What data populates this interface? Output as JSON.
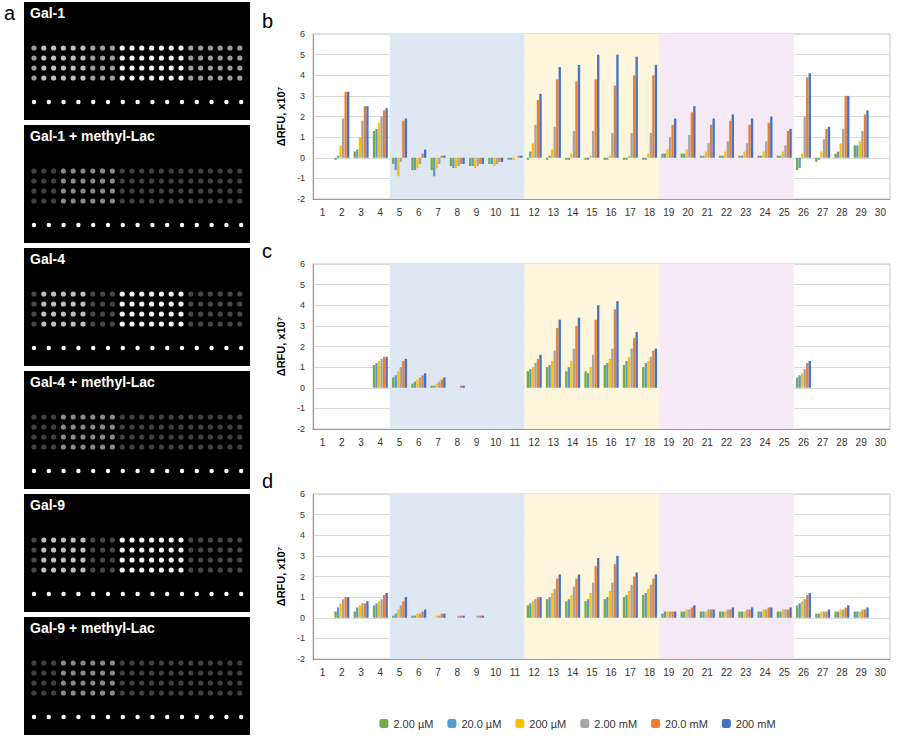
{
  "panel_a": {
    "panel": "a",
    "images": [
      "Gal-1",
      "Gal-1 + methyl-Lac",
      "Gal-4",
      "Gal-4 + methyl-Lac",
      "Gal-9",
      "Gal-9 + methyl-Lac"
    ]
  },
  "chart_data": [
    {
      "type": "bar",
      "panel": "b",
      "y_label": "ΔRFU, x10⁷",
      "categories": [
        "1",
        "2",
        "3",
        "4",
        "5",
        "6",
        "7",
        "8",
        "9",
        "10",
        "11",
        "12",
        "13",
        "14",
        "15",
        "16",
        "17",
        "18",
        "19",
        "20",
        "21",
        "22",
        "23",
        "24",
        "25",
        "26",
        "27",
        "28",
        "29",
        "30"
      ],
      "series": [
        {
          "name": "2.00 µM",
          "color": "#70ad47",
          "values": [
            0,
            -0.1,
            0.3,
            1.3,
            -0.3,
            -0.6,
            -0.6,
            -0.4,
            -0.4,
            -0.3,
            -0.1,
            -0.1,
            -0.1,
            -0.1,
            -0.1,
            -0.1,
            -0.1,
            -0.1,
            0.2,
            0.2,
            0.1,
            0.1,
            0.1,
            0.1,
            0.1,
            -0.6,
            -0.2,
            0.2,
            0.6,
            0
          ]
        },
        {
          "name": "20.0 µM",
          "color": "#5b9bd5",
          "values": [
            0,
            0.1,
            0.4,
            1.4,
            -0.6,
            -0.6,
            -0.9,
            -0.5,
            -0.4,
            -0.3,
            -0.1,
            0.3,
            0.1,
            -0.1,
            -0.1,
            -0.1,
            -0.1,
            -0.1,
            0.2,
            0.2,
            0.1,
            0.1,
            0.1,
            0.1,
            0.1,
            -0.5,
            -0.1,
            0.3,
            0.6,
            0
          ]
        },
        {
          "name": "200 µM",
          "color": "#ffc000",
          "values": [
            0,
            0.6,
            1.0,
            1.7,
            -0.9,
            -0.5,
            -0.5,
            -0.5,
            -0.5,
            -0.4,
            -0.1,
            0.7,
            0.4,
            0.2,
            0.1,
            0.1,
            0.1,
            0.2,
            0.4,
            0.4,
            0.3,
            0.3,
            0.3,
            0.3,
            0.3,
            0.2,
            0.3,
            0.7,
            0.8,
            0
          ]
        },
        {
          "name": "2.00 mM",
          "color": "#a5a5a5",
          "values": [
            0,
            1.9,
            1.8,
            2.0,
            -0.2,
            -0.3,
            -0.3,
            -0.4,
            -0.4,
            -0.3,
            0,
            1.6,
            1.5,
            1.3,
            1.3,
            1.2,
            1.2,
            1.2,
            1.0,
            1.1,
            0.7,
            0.8,
            0.7,
            0.8,
            0.6,
            2.0,
            0.9,
            1.4,
            1.3,
            0
          ]
        },
        {
          "name": "20.0 mM",
          "color": "#ed7d31",
          "values": [
            0,
            3.2,
            2.5,
            2.3,
            1.8,
            0.2,
            0.1,
            -0.3,
            -0.3,
            -0.2,
            0.1,
            2.8,
            3.8,
            3.7,
            3.8,
            3.5,
            4.0,
            4.0,
            1.6,
            2.2,
            1.6,
            1.8,
            1.6,
            1.7,
            1.3,
            3.9,
            1.4,
            3.0,
            2.1,
            0
          ]
        },
        {
          "name": "200 mM",
          "color": "#4472c4",
          "values": [
            0,
            3.2,
            2.5,
            2.4,
            1.9,
            0.4,
            0.1,
            -0.3,
            -0.3,
            -0.2,
            0.1,
            3.1,
            4.4,
            4.5,
            5.0,
            5.0,
            4.9,
            4.5,
            1.9,
            2.5,
            1.9,
            2.1,
            1.9,
            2.0,
            1.4,
            4.1,
            1.5,
            3.0,
            2.3,
            0
          ]
        }
      ],
      "regions": [
        {
          "start": "5",
          "end": "11",
          "color": "#dfe7f3"
        },
        {
          "start": "12",
          "end": "18",
          "color": "#fdf6dc"
        },
        {
          "start": "19",
          "end": "25",
          "color": "#f6eaf6"
        }
      ],
      "ylim": [
        -2,
        6
      ],
      "yticks": [
        -2,
        -1,
        0,
        1,
        2,
        3,
        4,
        5,
        6
      ],
      "grid": true
    },
    {
      "type": "bar",
      "panel": "c",
      "y_label": "ΔRFU, x10⁷",
      "categories": [
        "1",
        "2",
        "3",
        "4",
        "5",
        "6",
        "7",
        "8",
        "9",
        "10",
        "11",
        "12",
        "13",
        "14",
        "15",
        "16",
        "17",
        "18",
        "19",
        "20",
        "21",
        "22",
        "23",
        "24",
        "25",
        "26",
        "27",
        "28",
        "29",
        "30"
      ],
      "series": [
        {
          "name": "2.00 µM",
          "color": "#70ad47",
          "values": [
            0,
            0,
            0,
            1.1,
            0.5,
            0.2,
            0.1,
            0,
            0,
            0,
            0,
            0.8,
            1.0,
            0.8,
            0.8,
            1.1,
            1.1,
            1.0,
            0,
            0,
            0,
            0,
            0,
            0,
            0,
            0.5,
            0,
            0,
            0,
            0
          ]
        },
        {
          "name": "20.0 µM",
          "color": "#5b9bd5",
          "values": [
            0,
            0,
            0,
            1.2,
            0.6,
            0.3,
            0.1,
            0,
            0,
            0,
            0,
            0.9,
            1.1,
            1.0,
            0.7,
            1.2,
            1.3,
            1.2,
            0,
            0,
            0,
            0,
            0,
            0,
            0,
            0.6,
            0,
            0,
            0,
            0
          ]
        },
        {
          "name": "200 µM",
          "color": "#ffc000",
          "values": [
            0,
            0,
            0,
            1.3,
            0.8,
            0.4,
            0.2,
            0,
            0,
            0,
            0,
            1.0,
            1.3,
            1.3,
            1.0,
            1.4,
            1.5,
            1.3,
            0,
            0,
            0,
            0,
            0,
            0,
            0,
            0.7,
            0,
            0,
            0,
            0
          ]
        },
        {
          "name": "2.00 mM",
          "color": "#a5a5a5",
          "values": [
            0,
            0,
            0,
            1.4,
            1.0,
            0.5,
            0.3,
            0,
            0,
            0,
            0,
            1.2,
            1.8,
            1.9,
            1.6,
            1.9,
            1.9,
            1.5,
            0,
            0,
            0,
            0,
            0,
            0,
            0,
            0.9,
            0,
            0,
            0,
            0
          ]
        },
        {
          "name": "20.0 mM",
          "color": "#ed7d31",
          "values": [
            0,
            0,
            0,
            1.5,
            1.3,
            0.6,
            0.4,
            0.1,
            0,
            0,
            0,
            1.4,
            2.9,
            3.0,
            3.3,
            3.8,
            2.4,
            1.8,
            0,
            0,
            0,
            0,
            0,
            0,
            0,
            1.2,
            0,
            0,
            0,
            0
          ]
        },
        {
          "name": "200 mM",
          "color": "#4472c4",
          "values": [
            0,
            0,
            0,
            1.5,
            1.4,
            0.7,
            0.5,
            0.1,
            0,
            0,
            0,
            1.6,
            3.3,
            3.4,
            4.0,
            4.2,
            2.7,
            1.9,
            0,
            0,
            0,
            0,
            0,
            0,
            0,
            1.3,
            0,
            0,
            0,
            0
          ]
        }
      ],
      "regions": [
        {
          "start": "5",
          "end": "11",
          "color": "#dfe7f3"
        },
        {
          "start": "12",
          "end": "18",
          "color": "#fdf6dc"
        },
        {
          "start": "19",
          "end": "25",
          "color": "#f6eaf6"
        }
      ],
      "ylim": [
        -2,
        6
      ],
      "yticks": [
        -2,
        -1,
        0,
        1,
        2,
        3,
        4,
        5,
        6
      ],
      "grid": true
    },
    {
      "type": "bar",
      "panel": "d",
      "y_label": "ΔRFU, x10⁷",
      "categories": [
        "1",
        "2",
        "3",
        "4",
        "5",
        "6",
        "7",
        "8",
        "9",
        "10",
        "11",
        "12",
        "13",
        "14",
        "15",
        "16",
        "17",
        "18",
        "19",
        "20",
        "21",
        "22",
        "23",
        "24",
        "25",
        "26",
        "27",
        "28",
        "29",
        "30"
      ],
      "series": [
        {
          "name": "2.00 µM",
          "color": "#70ad47",
          "values": [
            0,
            0.3,
            0.3,
            0.6,
            0.1,
            0.1,
            0,
            0,
            0,
            0,
            0,
            0.6,
            0.9,
            0.8,
            0.8,
            0.9,
            1.0,
            1.1,
            0.2,
            0.3,
            0.3,
            0.3,
            0.3,
            0.3,
            0.3,
            0.6,
            0.2,
            0.3,
            0.3,
            0
          ]
        },
        {
          "name": "20.0 µM",
          "color": "#5b9bd5",
          "values": [
            0,
            0.5,
            0.5,
            0.7,
            0.2,
            0.1,
            0,
            0,
            0,
            0,
            0,
            0.7,
            1.0,
            0.9,
            0.9,
            1.0,
            1.1,
            1.2,
            0.3,
            0.3,
            0.3,
            0.3,
            0.3,
            0.3,
            0.3,
            0.7,
            0.2,
            0.3,
            0.3,
            0
          ]
        },
        {
          "name": "200 µM",
          "color": "#ffc000",
          "values": [
            0,
            0.7,
            0.6,
            0.8,
            0.4,
            0.2,
            0.1,
            0,
            0,
            0,
            0,
            0.8,
            1.2,
            1.1,
            1.2,
            1.3,
            1.3,
            1.4,
            0.3,
            0.4,
            0.3,
            0.3,
            0.3,
            0.4,
            0.4,
            0.8,
            0.3,
            0.4,
            0.3,
            0
          ]
        },
        {
          "name": "2.00 mM",
          "color": "#a5a5a5",
          "values": [
            0,
            0.9,
            0.7,
            0.9,
            0.6,
            0.2,
            0.1,
            0.1,
            0.1,
            0,
            0,
            0.9,
            1.4,
            1.5,
            1.7,
            1.7,
            1.6,
            1.6,
            0.3,
            0.4,
            0.4,
            0.4,
            0.4,
            0.4,
            0.4,
            0.9,
            0.3,
            0.4,
            0.4,
            0
          ]
        },
        {
          "name": "20.0 mM",
          "color": "#ed7d31",
          "values": [
            0,
            1.0,
            0.7,
            1.1,
            0.8,
            0.3,
            0.2,
            0.1,
            0.1,
            0,
            0,
            1.0,
            1.9,
            1.9,
            2.5,
            2.6,
            2.0,
            1.9,
            0.3,
            0.5,
            0.4,
            0.4,
            0.4,
            0.5,
            0.4,
            1.1,
            0.3,
            0.5,
            0.4,
            0
          ]
        },
        {
          "name": "200 mM",
          "color": "#4472c4",
          "values": [
            0,
            1.0,
            0.8,
            1.2,
            1.0,
            0.4,
            0.2,
            0.1,
            0.1,
            0,
            0,
            1.0,
            2.1,
            2.1,
            2.9,
            3.0,
            2.2,
            2.1,
            0.3,
            0.6,
            0.4,
            0.5,
            0.5,
            0.5,
            0.5,
            1.2,
            0.4,
            0.6,
            0.5,
            0
          ]
        }
      ],
      "regions": [
        {
          "start": "5",
          "end": "11",
          "color": "#dfe7f3"
        },
        {
          "start": "12",
          "end": "18",
          "color": "#fdf6dc"
        },
        {
          "start": "19",
          "end": "25",
          "color": "#f6eaf6"
        }
      ],
      "ylim": [
        -2,
        6
      ],
      "yticks": [
        -2,
        -1,
        0,
        1,
        2,
        3,
        4,
        5,
        6
      ],
      "grid": true,
      "legend": "bottom"
    }
  ]
}
